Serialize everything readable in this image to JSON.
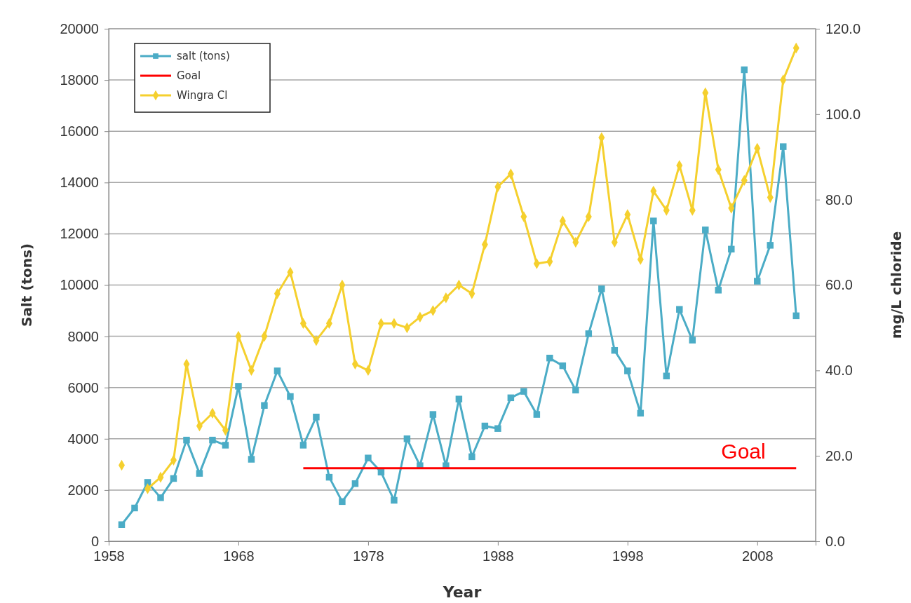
{
  "chart_data": {
    "type": "line",
    "xlabel": "Year",
    "ylabel": "Salt (tons)",
    "y2label": "mg/L chloride",
    "x": [
      1959,
      1960,
      1961,
      1962,
      1963,
      1964,
      1965,
      1966,
      1967,
      1968,
      1969,
      1970,
      1971,
      1972,
      1973,
      1974,
      1975,
      1976,
      1977,
      1978,
      1979,
      1980,
      1981,
      1982,
      1983,
      1984,
      1985,
      1986,
      1987,
      1988,
      1989,
      1990,
      1991,
      1992,
      1993,
      1994,
      1995,
      1996,
      1997,
      1998,
      1999,
      2000,
      2001,
      2002,
      2003,
      2004,
      2005,
      2006,
      2007,
      2008,
      2009,
      2010,
      2011
    ],
    "series": [
      {
        "name": "salt (tons)",
        "color": "#4bacc6",
        "marker": "square",
        "values": [
          650,
          1300,
          2300,
          1700,
          2450,
          3950,
          2650,
          3950,
          3750,
          6050,
          3200,
          5300,
          6650,
          5650,
          3750,
          4850,
          2500,
          1550,
          2250,
          3250,
          2700,
          1600,
          4000,
          2950,
          4950,
          2950,
          5550,
          3300,
          4500,
          4400,
          5600,
          5850,
          4950,
          7150,
          6850,
          5900,
          8100,
          9850,
          7450,
          6650,
          5000,
          12500,
          6450,
          9050,
          7850,
          12150,
          9800,
          11400,
          18400,
          10150,
          11550,
          15400,
          8800
        ]
      },
      {
        "name": "Goal",
        "color": "#ff0000",
        "marker": "none",
        "x": [
          1973,
          2011
        ],
        "values": [
          2850,
          2850
        ]
      },
      {
        "name": "Wingra Cl",
        "color": "#f5d02e",
        "marker": "diamond",
        "axis": "y2",
        "values": [
          17.8,
          null,
          12.3,
          15,
          19,
          41.5,
          27,
          30,
          26,
          48,
          40,
          48,
          58,
          63,
          51,
          47,
          51,
          60,
          41.5,
          40,
          51,
          51,
          50,
          52.5,
          54,
          57,
          60,
          58,
          69.5,
          83,
          86,
          76,
          65,
          65.5,
          75,
          70,
          76,
          94.5,
          70,
          76.5,
          66,
          82,
          77.5,
          88,
          77.5,
          105,
          87,
          78,
          84.5,
          92,
          80.5,
          108,
          115.5
        ]
      }
    ],
    "xlim": [
      1958,
      2012.5
    ],
    "xticks": [
      1958,
      1968,
      1978,
      1988,
      1998,
      2008
    ],
    "ylim": [
      0,
      20000
    ],
    "yticks": [
      0,
      2000,
      4000,
      6000,
      8000,
      10000,
      12000,
      14000,
      16000,
      18000,
      20000
    ],
    "y2lim": [
      0,
      120
    ],
    "y2ticks": [
      {
        "value": 0,
        "label": "0.0"
      },
      {
        "value": 20,
        "label": "20.0"
      },
      {
        "value": 40,
        "label": "40.0"
      },
      {
        "value": 60,
        "label": "60.0"
      },
      {
        "value": 80,
        "label": "80.0"
      },
      {
        "value": 100,
        "label": "100.0"
      },
      {
        "value": 120,
        "label": "120.0"
      }
    ],
    "grid": "y",
    "legend": "top left",
    "annotations": [
      "Goal"
    ]
  }
}
